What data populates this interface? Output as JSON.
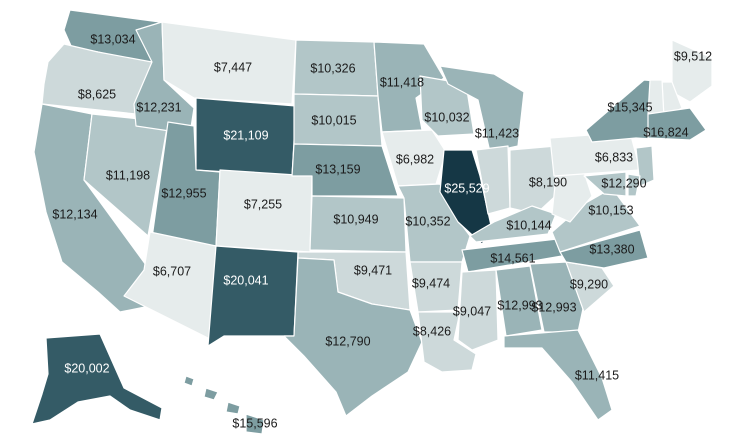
{
  "legend": {
    "colors": {
      "lowest": "#e6ecec",
      "low": "#cdd9da",
      "mid_low": "#b2c6c8",
      "mid": "#9ab4b7",
      "mid_high": "#7d9da1",
      "high": "#5a7f86",
      "very_high": "#345b66",
      "highest": "#153745"
    },
    "label_dark": "#1b1b1b",
    "label_light": "#ffffff"
  },
  "states": [
    {
      "id": "WA",
      "value": "$13,034",
      "tone": "mid_high"
    },
    {
      "id": "OR",
      "value": "$8,625",
      "tone": "low"
    },
    {
      "id": "CA",
      "value": "$12,134",
      "tone": "mid"
    },
    {
      "id": "NV",
      "value": "$11,198",
      "tone": "mid_low"
    },
    {
      "id": "ID",
      "value": "$12,231",
      "tone": "mid"
    },
    {
      "id": "MT",
      "value": "$7,447",
      "tone": "lowest"
    },
    {
      "id": "WY",
      "value": "$21,109",
      "tone": "very_high"
    },
    {
      "id": "UT",
      "value": "$12,955",
      "tone": "mid_high"
    },
    {
      "id": "AZ",
      "value": "$6,707",
      "tone": "lowest"
    },
    {
      "id": "CO",
      "value": "$7,255",
      "tone": "lowest"
    },
    {
      "id": "NM",
      "value": "$20,041",
      "tone": "very_high"
    },
    {
      "id": "ND",
      "value": "$10,326",
      "tone": "mid_low"
    },
    {
      "id": "SD",
      "value": "$10,015",
      "tone": "mid_low"
    },
    {
      "id": "NE",
      "value": "$13,159",
      "tone": "mid_high"
    },
    {
      "id": "KS",
      "value": "$10,949",
      "tone": "mid_low"
    },
    {
      "id": "OK",
      "value": "$9,471",
      "tone": "low"
    },
    {
      "id": "TX",
      "value": "$12,790",
      "tone": "mid"
    },
    {
      "id": "MN",
      "value": "$11,418",
      "tone": "mid"
    },
    {
      "id": "IA",
      "value": "$6,982",
      "tone": "lowest"
    },
    {
      "id": "MO",
      "value": "$10,352",
      "tone": "mid_low"
    },
    {
      "id": "AR",
      "value": "$9,474",
      "tone": "low"
    },
    {
      "id": "LA",
      "value": "$8,426",
      "tone": "low"
    },
    {
      "id": "WI",
      "value": "$10,032",
      "tone": "mid_low"
    },
    {
      "id": "IL",
      "value": "$25,529",
      "tone": "highest"
    },
    {
      "id": "MI",
      "value": "$11,423",
      "tone": "mid"
    },
    {
      "id": "IN",
      "value": "$8,190",
      "tone": "low"
    },
    {
      "id": "OH",
      "value": "$8,190",
      "tone": "low"
    },
    {
      "id": "KY",
      "value": "$10,144",
      "tone": "mid_low"
    },
    {
      "id": "TN",
      "value": "$14,561",
      "tone": "mid_high"
    },
    {
      "id": "MS",
      "value": "$9,047",
      "tone": "low"
    },
    {
      "id": "AL",
      "value": "$12,993",
      "tone": "mid"
    },
    {
      "id": "GA",
      "value": "$12,993",
      "tone": "mid"
    },
    {
      "id": "FL",
      "value": "$11,415",
      "tone": "mid"
    },
    {
      "id": "SC",
      "value": "$9,290",
      "tone": "low"
    },
    {
      "id": "NC",
      "value": "$13,380",
      "tone": "mid_high"
    },
    {
      "id": "VA",
      "value": "$10,153",
      "tone": "mid_low"
    },
    {
      "id": "WV",
      "value": "$10,153",
      "tone": "lowest"
    },
    {
      "id": "PA",
      "value": "$6,833",
      "tone": "lowest"
    },
    {
      "id": "NY",
      "value": "$15,345",
      "tone": "mid_high"
    },
    {
      "id": "ME",
      "value": "$9,512",
      "tone": "lowest"
    },
    {
      "id": "NH",
      "value": "",
      "tone": "lowest"
    },
    {
      "id": "VT",
      "value": "",
      "tone": "lowest"
    },
    {
      "id": "MA",
      "value": "$16,824",
      "tone": "mid_high"
    },
    {
      "id": "NJ",
      "value": "$12,290",
      "tone": "mid_low"
    },
    {
      "id": "MD",
      "value": "",
      "tone": "mid_low"
    },
    {
      "id": "DE",
      "value": "",
      "tone": "mid_low"
    },
    {
      "id": "AK",
      "value": "$20,002",
      "tone": "very_high"
    },
    {
      "id": "HI",
      "value": "$15,596",
      "tone": "mid_high"
    }
  ]
}
